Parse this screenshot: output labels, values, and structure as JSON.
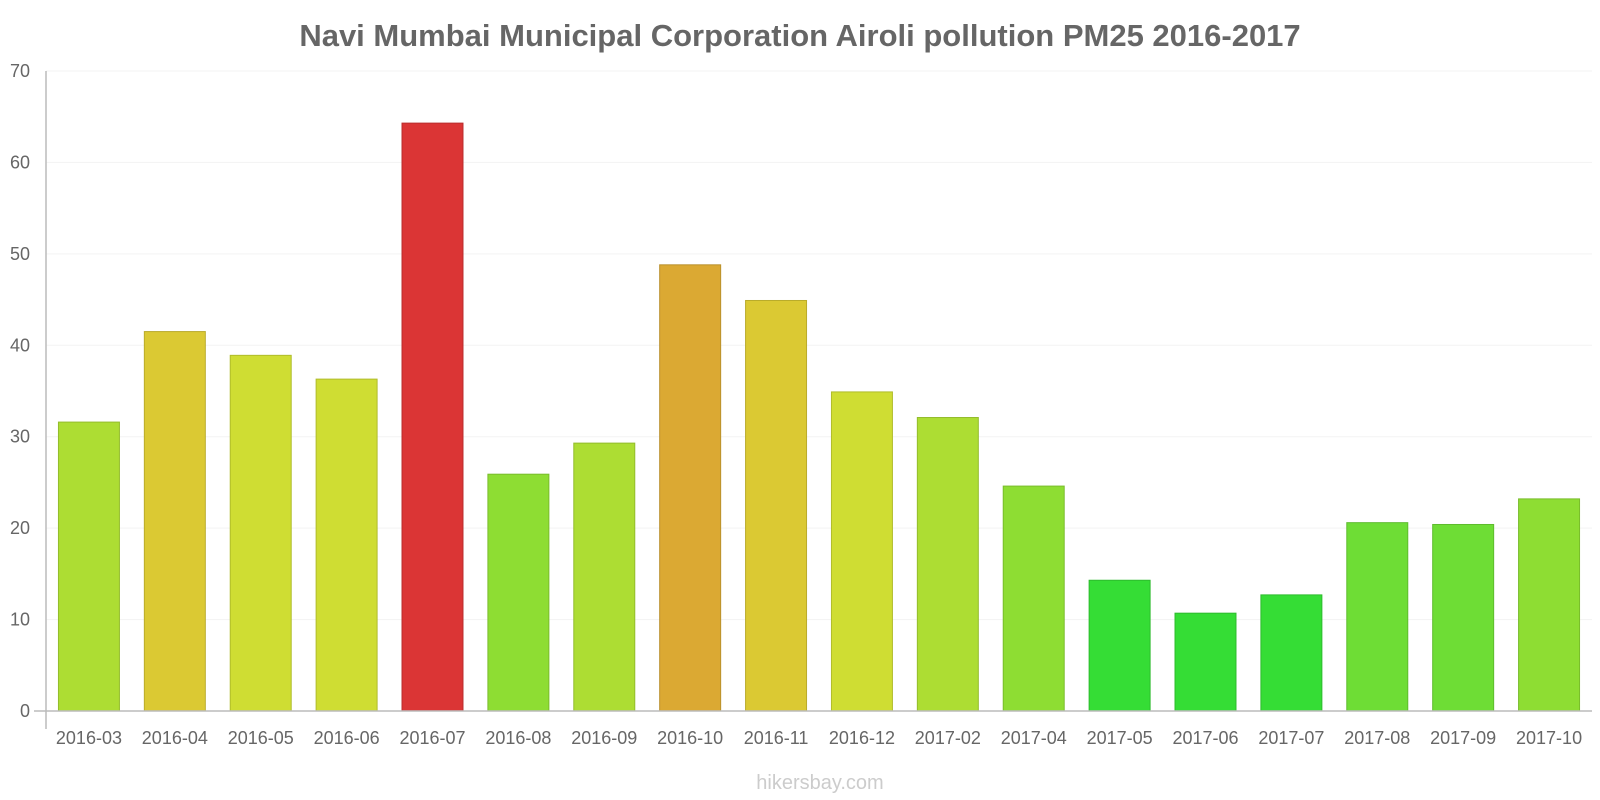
{
  "chart_data": {
    "type": "bar",
    "title": "Navi Mumbai Municipal Corporation Airoli pollution PM25 2016-2017",
    "xlabel": "",
    "ylabel": "",
    "ylim": [
      0,
      70
    ],
    "yticks": [
      0,
      10,
      20,
      30,
      40,
      50,
      60,
      70
    ],
    "grid": true,
    "categories": [
      "2016-03",
      "2016-04",
      "2016-05",
      "2016-06",
      "2016-07",
      "2016-08",
      "2016-09",
      "2016-10",
      "2016-11",
      "2016-12",
      "2017-02",
      "2017-04",
      "2017-05",
      "2017-06",
      "2017-07",
      "2017-08",
      "2017-09",
      "2017-10"
    ],
    "values": [
      31.6,
      41.5,
      38.9,
      36.3,
      64.3,
      25.9,
      29.3,
      48.8,
      44.9,
      34.9,
      32.1,
      24.6,
      14.3,
      10.7,
      12.7,
      20.6,
      20.4,
      23.2
    ],
    "colors": [
      "#addd33",
      "#dbc933",
      "#cfdd33",
      "#cfdd33",
      "#db3535",
      "#8edd33",
      "#addd33",
      "#dba933",
      "#dbc933",
      "#cfdd33",
      "#addd33",
      "#8edd33",
      "#35dd35",
      "#35dd35",
      "#35dd35",
      "#6edd35",
      "#6edd35",
      "#8edd33"
    ],
    "source": "hikersbay.com"
  }
}
